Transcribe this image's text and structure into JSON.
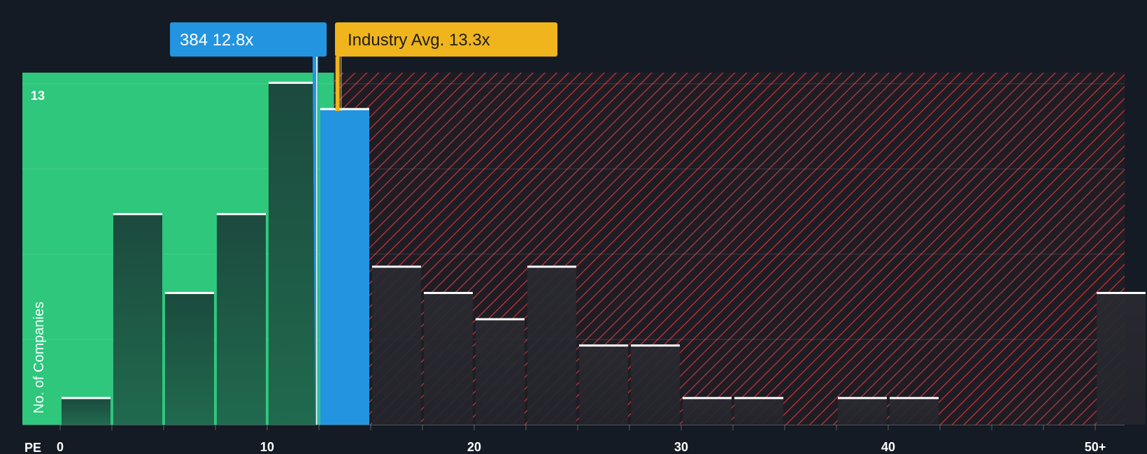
{
  "chart_data": {
    "type": "bar",
    "xlabel": "PE",
    "ylabel": "No. of Companies",
    "x_tick_labels": [
      "0",
      "10",
      "20",
      "30",
      "40",
      "50+"
    ],
    "y_tick_label": "13",
    "y_max_label_value": 13,
    "ylim": [
      0,
      13.4
    ],
    "xlim": [
      0,
      51.3
    ],
    "bin_width": 2.5,
    "bins": [
      {
        "x0": 0.0,
        "value": 1
      },
      {
        "x0": 2.5,
        "value": 8
      },
      {
        "x0": 5.0,
        "value": 5
      },
      {
        "x0": 7.5,
        "value": 8
      },
      {
        "x0": 10.0,
        "value": 13
      },
      {
        "x0": 12.5,
        "value": 12,
        "highlight": true
      },
      {
        "x0": 15.0,
        "value": 6
      },
      {
        "x0": 17.5,
        "value": 5
      },
      {
        "x0": 20.0,
        "value": 4
      },
      {
        "x0": 22.5,
        "value": 6
      },
      {
        "x0": 25.0,
        "value": 3
      },
      {
        "x0": 27.5,
        "value": 3
      },
      {
        "x0": 30.0,
        "value": 1
      },
      {
        "x0": 32.5,
        "value": 1
      },
      {
        "x0": 37.5,
        "value": 1
      },
      {
        "x0": 40.0,
        "value": 1
      },
      {
        "x0": 50.0,
        "value": 5
      }
    ],
    "company": {
      "label": "384 12.8x",
      "value": 12.8
    },
    "industry": {
      "label": "Industry Avg. 13.3x",
      "value": 13.3
    },
    "colors": {
      "green_zone": "#2ec77c",
      "red_zone_bg": "#1f1d24",
      "hatch": "#c8363e",
      "bar_green": "#1d4a3d",
      "bar_red": "#2a2a31",
      "highlight_bar": "#2394e0",
      "company_callout": "#2394e0",
      "industry_callout": "#f0b41c",
      "bar_cap": "#ffffff"
    }
  }
}
